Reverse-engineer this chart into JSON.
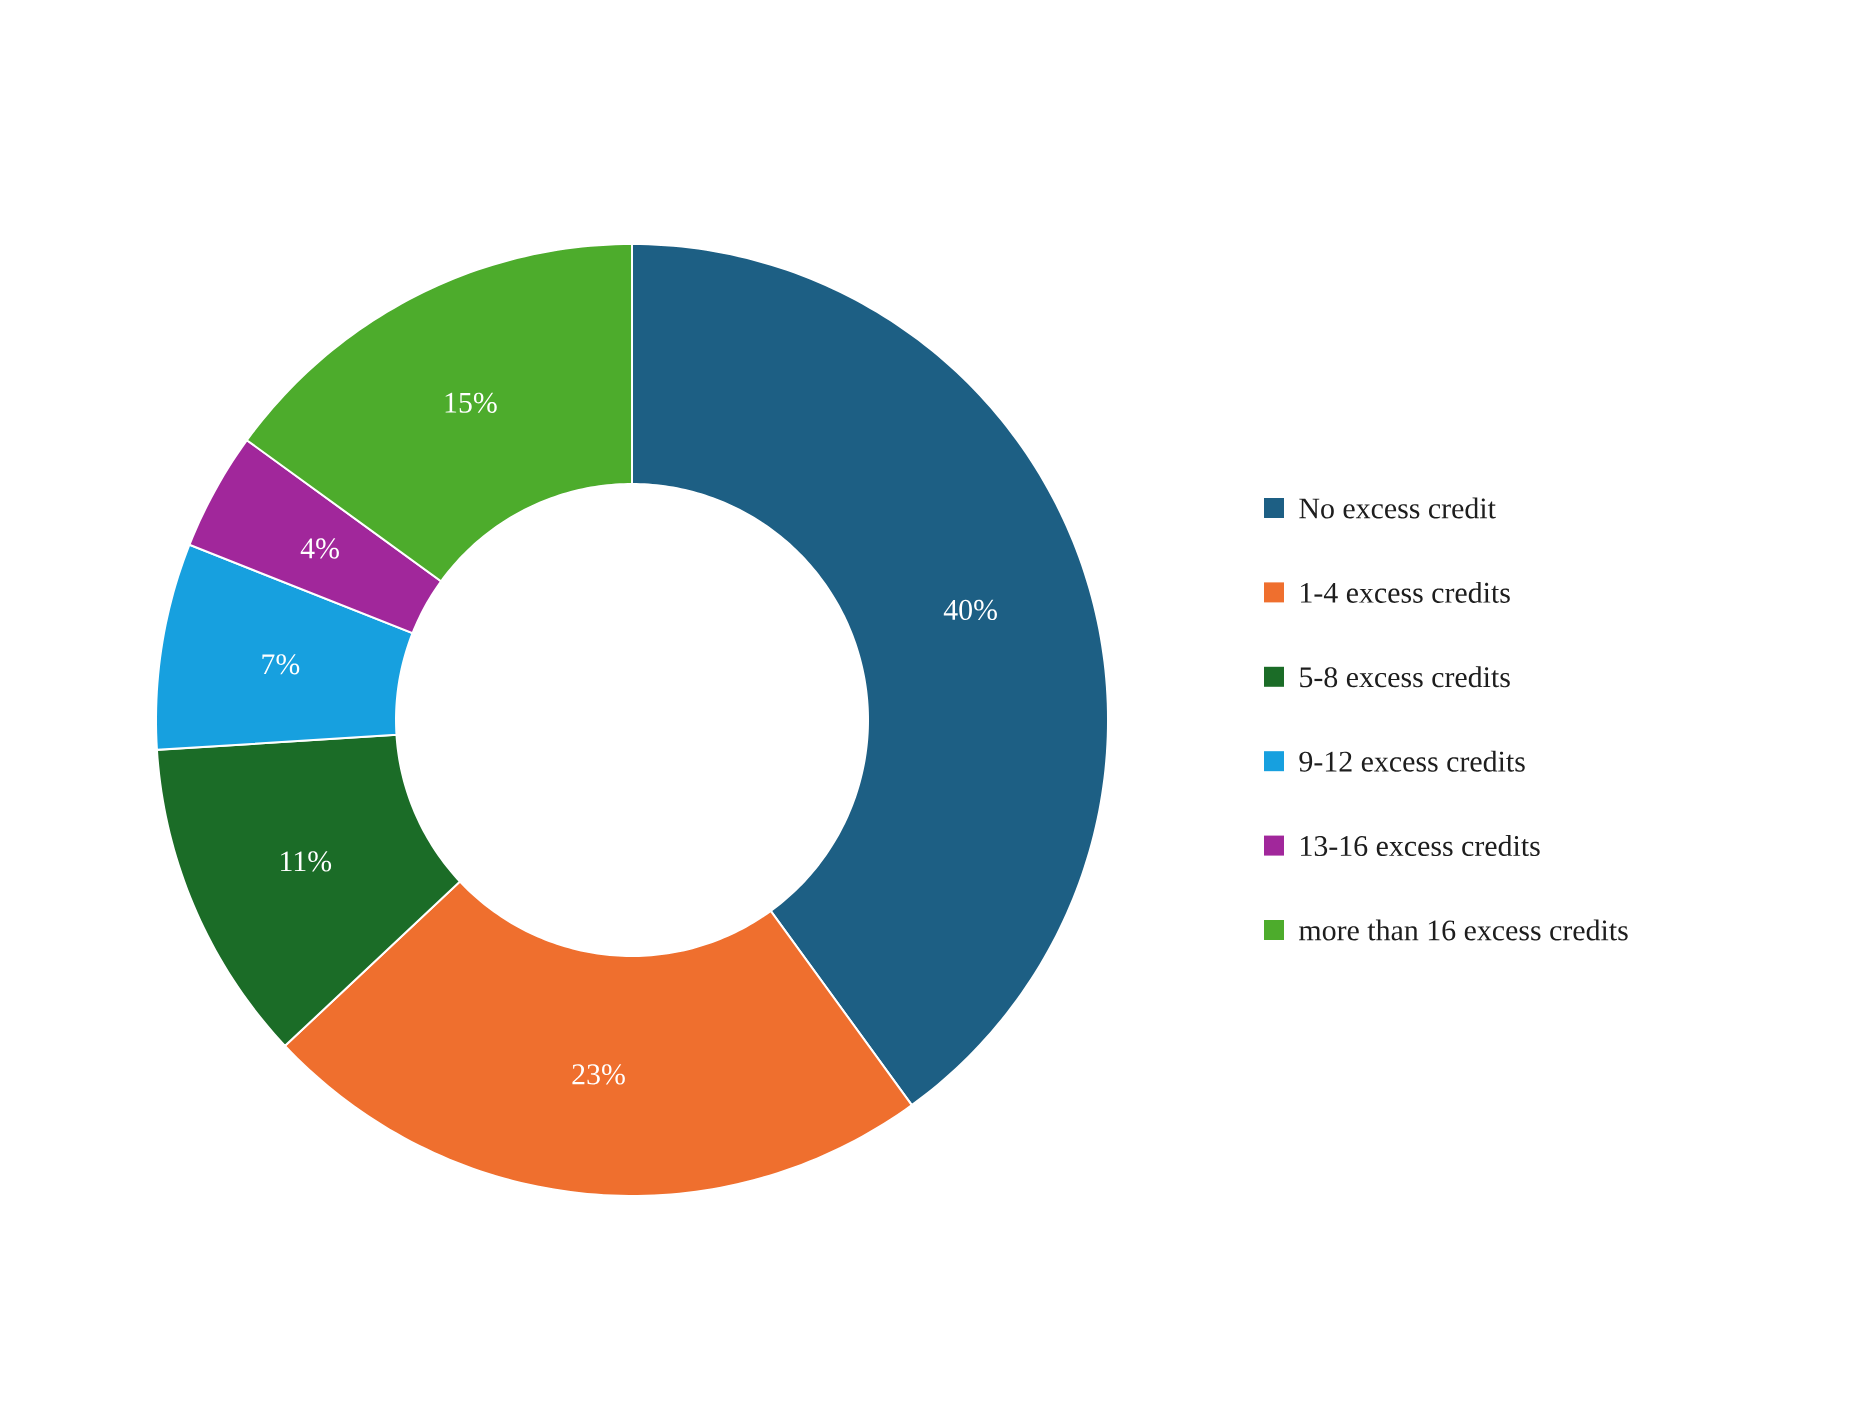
{
  "chart_data": {
    "type": "donut",
    "categories": [
      "No excess credit",
      "1-4 excess credits",
      "5-8 excess credits",
      "9-12 excess credits",
      "13-16 excess credits",
      "more than 16 excess credits"
    ],
    "values": [
      40,
      23,
      11,
      7,
      4,
      15
    ],
    "colors": [
      "#1d5f84",
      "#ef6f2e",
      "#1b6c27",
      "#17a0df",
      "#a1279b",
      "#4dac2c"
    ],
    "value_labels": [
      "40%",
      "23%",
      "11%",
      "7%",
      "4%",
      "15%"
    ],
    "legend": "right"
  }
}
